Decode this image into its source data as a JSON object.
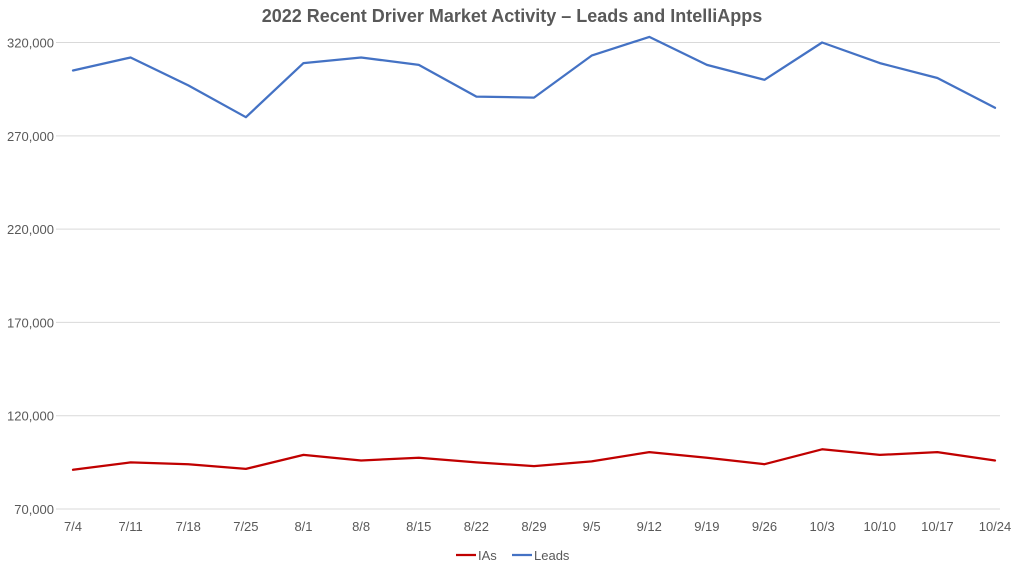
{
  "chart_data": {
    "type": "line",
    "title": "2022 Recent Driver Market Activity – Leads and IntelliApps",
    "xlabel": "",
    "ylabel": "",
    "categories": [
      "7/4",
      "7/11",
      "7/18",
      "7/25",
      "8/1",
      "8/8",
      "8/15",
      "8/22",
      "8/29",
      "9/5",
      "9/12",
      "9/19",
      "9/26",
      "10/3",
      "10/10",
      "10/17",
      "10/24"
    ],
    "ylim": [
      70000,
      325000
    ],
    "yticks": [
      70000,
      120000,
      170000,
      220000,
      270000,
      320000
    ],
    "ytick_labels": [
      "70,000",
      "120,000",
      "170,000",
      "220,000",
      "270,000",
      "320,000"
    ],
    "grid": true,
    "legend_position": "bottom",
    "series": [
      {
        "name": "IAs",
        "color": "#C00000",
        "values": [
          91000,
          95000,
          94000,
          91500,
          99000,
          96000,
          97500,
          95000,
          93000,
          95500,
          100500,
          97500,
          94000,
          102000,
          99000,
          100500,
          96000
        ]
      },
      {
        "name": "Leads",
        "color": "#4472C4",
        "values": [
          305000,
          312000,
          297000,
          280000,
          309000,
          312000,
          308000,
          291000,
          290500,
          313000,
          323000,
          308000,
          300000,
          320000,
          309000,
          301000,
          285000
        ]
      }
    ]
  }
}
